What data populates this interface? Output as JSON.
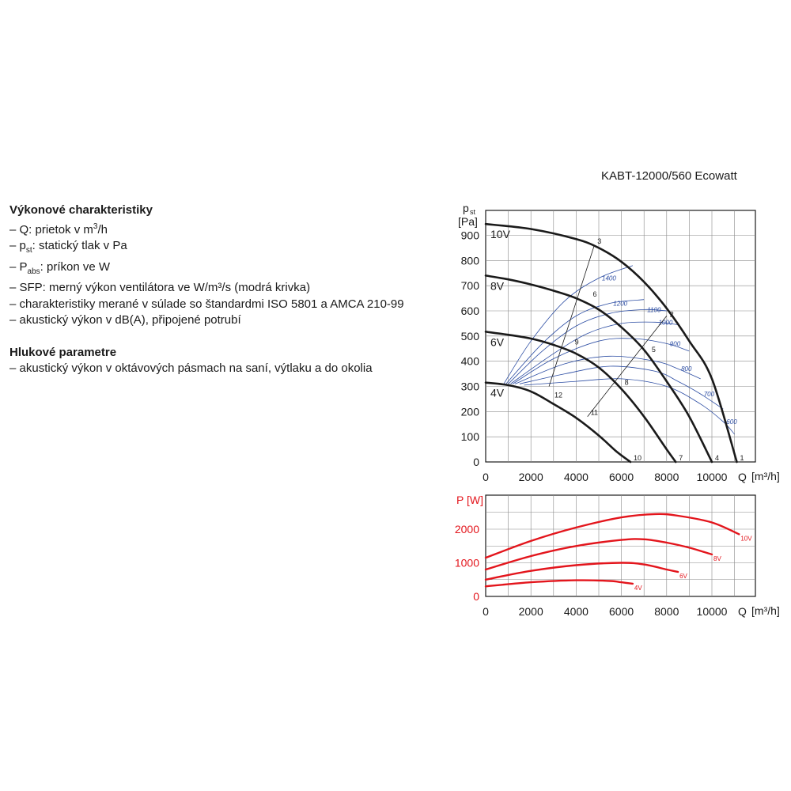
{
  "model": "KABT-12000/560 Ecowatt",
  "perf": {
    "title": "Výkonové charakteristiky",
    "lines": [
      {
        "a": "– Q: prietok v m",
        "sup": "3",
        "b": "/h"
      },
      {
        "a": "– p",
        "sub": "st",
        "b": ": statický tlak v Pa"
      },
      {
        "a": "– P",
        "sub": "abs",
        "b": ": príkon ve W"
      },
      {
        "a": "– SFP: merný výkon ventilátora ve W/m³/s (modrá krivka)"
      },
      {
        "a": "– charakteristiky merané v súlade so štandardmi ISO 5801 a AMCA 210-99"
      },
      {
        "a": "– akustický výkon v dB(A), připojené potrubí"
      }
    ]
  },
  "noise": {
    "title": "Hlukové parametre",
    "line": "– akustický výkon v oktávových pásmach na saní, výtlaku a do okolia"
  },
  "chart_data": [
    {
      "type": "line",
      "title": "",
      "xlabel": "Q [m³/h]",
      "ylabel": "pst [Pa]",
      "ylabel_main": "p",
      "ylabel_sub": "st",
      "yunit": "[Pa]",
      "xlabel_main": "Q",
      "xunit": "[m³/h]",
      "xlim": [
        0,
        12000
      ],
      "ylim": [
        0,
        950
      ],
      "xticks": [
        0,
        2000,
        4000,
        6000,
        8000,
        10000
      ],
      "yticks": [
        0,
        100,
        200,
        300,
        400,
        500,
        600,
        700,
        800,
        900
      ],
      "grid": true,
      "series": [
        {
          "name": "10V",
          "x": [
            0,
            2000,
            4000,
            5000,
            6000,
            7000,
            8000,
            9000,
            10000,
            11100
          ],
          "y": [
            945,
            925,
            885,
            850,
            795,
            715,
            610,
            480,
            330,
            0
          ]
        },
        {
          "name": "8V",
          "x": [
            0,
            1000,
            2000,
            3000,
            4000,
            5000,
            6000,
            7000,
            8000,
            9000,
            10000
          ],
          "y": [
            740,
            725,
            705,
            680,
            650,
            605,
            535,
            445,
            320,
            180,
            0
          ]
        },
        {
          "name": "6V",
          "x": [
            0,
            1000,
            2000,
            3000,
            4000,
            5000,
            6000,
            7000,
            8000,
            8400
          ],
          "y": [
            517,
            505,
            490,
            465,
            430,
            375,
            290,
            180,
            50,
            0
          ]
        },
        {
          "name": "4V",
          "x": [
            0,
            1000,
            2000,
            3000,
            4000,
            5000,
            5800,
            6400
          ],
          "y": [
            315,
            305,
            280,
            230,
            175,
            105,
            40,
            0
          ]
        }
      ],
      "operating_points": [
        {
          "label": "1",
          "x": 11100,
          "y": 0
        },
        {
          "label": "2",
          "x": 8000,
          "y": 570
        },
        {
          "label": "3",
          "x": 4800,
          "y": 860
        },
        {
          "label": "4",
          "x": 10000,
          "y": 0
        },
        {
          "label": "5",
          "x": 7200,
          "y": 430
        },
        {
          "label": "6",
          "x": 4600,
          "y": 650
        },
        {
          "label": "7",
          "x": 8400,
          "y": 0
        },
        {
          "label": "8",
          "x": 6000,
          "y": 300
        },
        {
          "label": "9",
          "x": 3800,
          "y": 460
        },
        {
          "label": "10",
          "x": 6400,
          "y": 0
        },
        {
          "label": "11",
          "x": 4500,
          "y": 180
        },
        {
          "label": "12",
          "x": 2900,
          "y": 250
        }
      ],
      "system_curves": [
        {
          "points": [
            {
              "x": 2800,
              "y": 300
            },
            {
              "x": 4800,
              "y": 860
            }
          ]
        },
        {
          "points": [
            {
              "x": 4500,
              "y": 180
            },
            {
              "x": 8000,
              "y": 580
            }
          ]
        }
      ],
      "sfp_series": [
        {
          "name": "1400",
          "x": [
            800,
            2000,
            3500,
            5000,
            6500
          ],
          "y": [
            310,
            480,
            640,
            730,
            780
          ]
        },
        {
          "name": "1200",
          "x": [
            900,
            2500,
            4000,
            5500,
            7000
          ],
          "y": [
            310,
            470,
            580,
            630,
            645
          ]
        },
        {
          "name": "1100",
          "x": [
            1000,
            2500,
            4000,
            5500,
            7000,
            8000
          ],
          "y": [
            310,
            440,
            540,
            590,
            605,
            600
          ]
        },
        {
          "name": "1000",
          "x": [
            1100,
            3000,
            4500,
            6000,
            7500,
            8500
          ],
          "y": [
            310,
            430,
            510,
            550,
            555,
            545
          ]
        },
        {
          "name": "900",
          "x": [
            1200,
            3000,
            5000,
            6500,
            8000,
            9000
          ],
          "y": [
            310,
            410,
            480,
            490,
            470,
            440
          ]
        },
        {
          "name": "800",
          "x": [
            1300,
            3500,
            5500,
            7500,
            8500,
            9500
          ],
          "y": [
            310,
            390,
            420,
            400,
            370,
            330
          ]
        },
        {
          "name": "700",
          "x": [
            1500,
            3500,
            5500,
            7500,
            8500,
            9500,
            10500
          ],
          "y": [
            310,
            350,
            380,
            360,
            320,
            270,
            210
          ]
        },
        {
          "name": "600",
          "x": [
            1700,
            4000,
            6000,
            8000,
            9500,
            10500,
            11000
          ],
          "y": [
            305,
            320,
            330,
            300,
            230,
            160,
            110
          ]
        }
      ]
    },
    {
      "type": "line",
      "title": "",
      "xlabel": "Q [m³/h]",
      "ylabel": "P [W]",
      "ylabel_main": "P",
      "yunit": "[W]",
      "xlabel_main": "Q",
      "xunit": "[m³/h]",
      "xlim": [
        0,
        12000
      ],
      "ylim": [
        0,
        3000
      ],
      "xticks": [
        0,
        2000,
        4000,
        6000,
        8000,
        10000
      ],
      "yticks": [
        0,
        1000,
        2000
      ],
      "grid": true,
      "series": [
        {
          "name": "10V",
          "x": [
            0,
            2000,
            4000,
            6000,
            7500,
            8500,
            10000,
            11200
          ],
          "y": [
            1150,
            1650,
            2050,
            2350,
            2450,
            2400,
            2200,
            1850
          ]
        },
        {
          "name": "8V",
          "x": [
            0,
            2000,
            4000,
            6000,
            7000,
            8000,
            9000,
            10000
          ],
          "y": [
            800,
            1200,
            1500,
            1680,
            1700,
            1600,
            1450,
            1250
          ]
        },
        {
          "name": "6V",
          "x": [
            0,
            2000,
            4000,
            6000,
            7000,
            8000,
            8500
          ],
          "y": [
            500,
            760,
            930,
            1000,
            950,
            800,
            730
          ]
        },
        {
          "name": "4V",
          "x": [
            0,
            2000,
            4000,
            5500,
            6000,
            6500
          ],
          "y": [
            300,
            420,
            480,
            460,
            420,
            380
          ]
        }
      ]
    }
  ],
  "colors": {
    "black": "#1a1a1a",
    "sfp": "#2c4da3",
    "power": "#e3151c",
    "grid": "#8a8a8a"
  }
}
